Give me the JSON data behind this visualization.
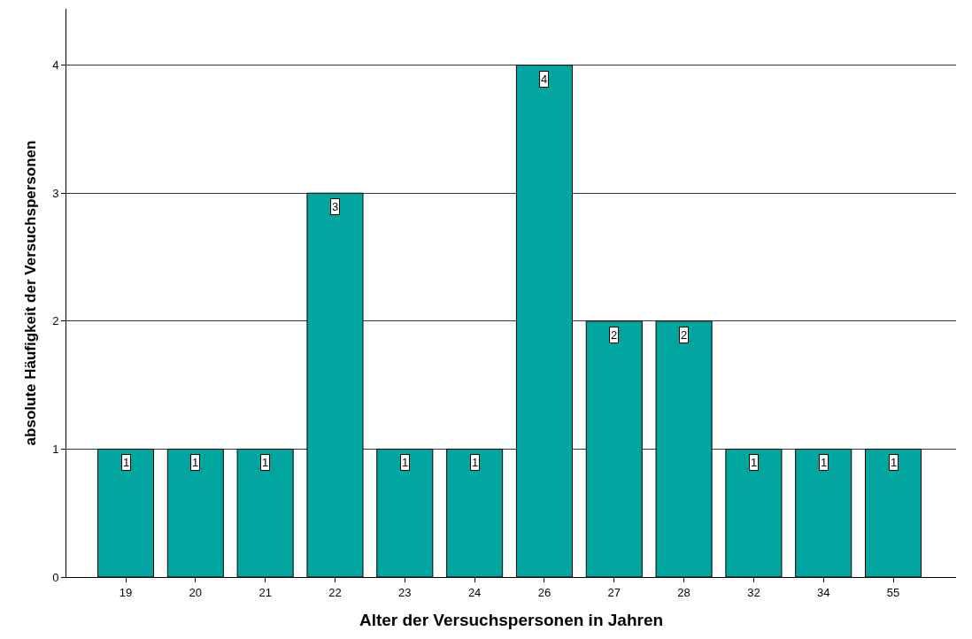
{
  "chart_data": {
    "type": "bar",
    "xlabel": "Alter der Versuchspersonen in Jahren",
    "ylabel": "absolute Häufigkeit der Versuchspersonen",
    "categories": [
      "19",
      "20",
      "21",
      "22",
      "23",
      "24",
      "26",
      "27",
      "28",
      "32",
      "34",
      "55"
    ],
    "values": [
      1,
      1,
      1,
      3,
      1,
      1,
      4,
      2,
      2,
      1,
      1,
      1
    ],
    "color": "#00a5a0",
    "ylim": [
      0,
      4.44
    ],
    "yticks": [
      0,
      1,
      2,
      3,
      4
    ],
    "grid": "y",
    "data_labels": true
  }
}
